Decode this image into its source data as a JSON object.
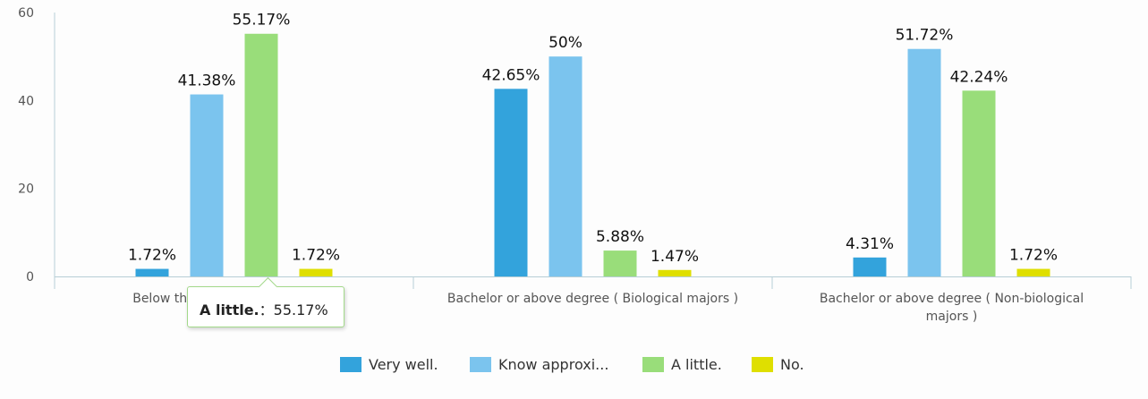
{
  "chart_data": {
    "type": "bar",
    "categories": [
      [
        "Below the Bachelor-degree level"
      ],
      [
        "Bachelor or above degree ( Biological majors )"
      ],
      [
        "Bachelor or above degree ( Non-biological",
        "majors )"
      ]
    ],
    "series": [
      {
        "name": "Very well.",
        "color": "#33a3dc",
        "values": [
          1.72,
          42.65,
          4.31
        ],
        "labels": [
          "1.72%",
          "42.65%",
          "4.31%"
        ]
      },
      {
        "name": "Know approxi...",
        "color": "#7bc4ee",
        "values": [
          41.38,
          50,
          51.72
        ],
        "labels": [
          "41.38%",
          "50%",
          "51.72%"
        ]
      },
      {
        "name": "A little.",
        "color": "#99dd7a",
        "values": [
          55.17,
          5.88,
          42.24
        ],
        "labels": [
          "55.17%",
          "5.88%",
          "42.24%"
        ]
      },
      {
        "name": "No.",
        "color": "#dfdf00",
        "values": [
          1.72,
          1.47,
          1.72
        ],
        "labels": [
          "1.72%",
          "1.47%",
          "1.72%"
        ]
      }
    ],
    "ylim": [
      0,
      60
    ],
    "yticks": [
      0,
      20,
      40,
      60
    ],
    "grid": false,
    "legend_position": "bottom-center"
  },
  "tooltip": {
    "series": "A little.",
    "separator": "：",
    "value": "55.17%"
  }
}
